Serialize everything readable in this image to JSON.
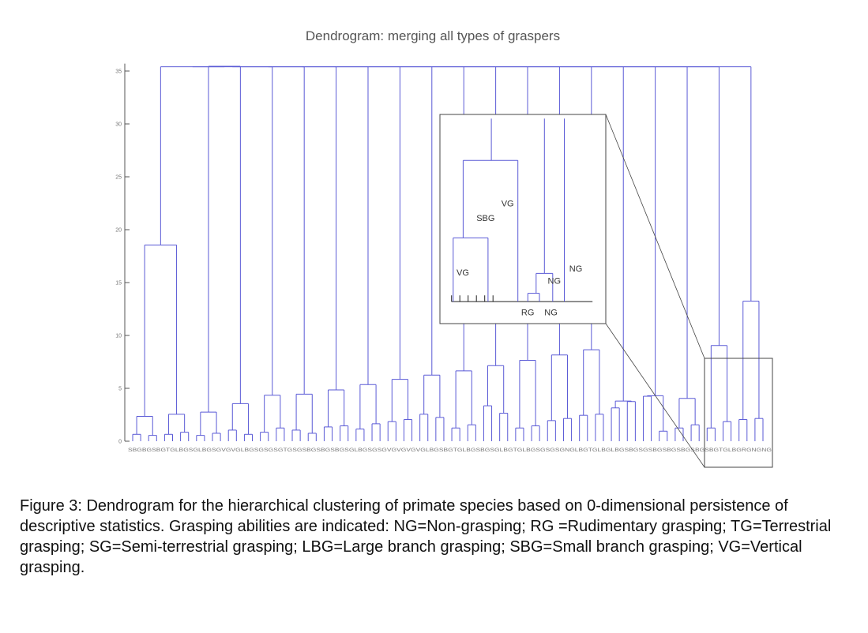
{
  "chart_data": {
    "type": "dendrogram",
    "title": "Dendrogram: merging all types of graspers",
    "yticks": [
      0,
      5,
      10,
      15,
      20,
      25,
      30,
      35
    ],
    "ylim": [
      0,
      36
    ],
    "leaf_count": 80,
    "leaf_label_strip": "SBGBGSBGTGLBGSGLBGSGVGVGLBGSGSGSGTGSGSBGSBGSBGSGLBGSGSGVGVGVGVGLBGSBGTGLBGSBGSGLBGTGLBGSGSGSGNGLBGTGLBGLBGSBGSGSBGSBGSBGSBGSBGTGLBGRGNGNG",
    "merge_heights": [
      0.6,
      0.5,
      0.6,
      0.8,
      0.5,
      0.7,
      1.0,
      0.6,
      0.8,
      1.2,
      1.0,
      0.7,
      1.3,
      1.4,
      1.1,
      1.6,
      1.8,
      2.0,
      2.5,
      2.2,
      1.2,
      1.5,
      3.3,
      2.6,
      1.2,
      1.4,
      1.9,
      2.1,
      2.4,
      2.5,
      3.1,
      3.7,
      4.2,
      0.9,
      1.2,
      1.5,
      1.2,
      1.8,
      2.0,
      2.1,
      2.3,
      2.5,
      2.7,
      3.5,
      4.3,
      4.4,
      4.8,
      5.3,
      5.8,
      6.2,
      6.6,
      7.1,
      7.6,
      8.1,
      8.6,
      2.4,
      3.2,
      4.0,
      9.0,
      13.2,
      18.5,
      35.4
    ],
    "inset": {
      "labels": [
        "VG",
        "SBG",
        "VG",
        "NG",
        "NG",
        "RG",
        "NG"
      ]
    }
  },
  "caption": "Figure 3: Dendrogram for the hierarchical clustering of primate species based on 0-dimensional persistence of descriptive statistics. Grasping abilities are indicated: NG=Non-grasping; RG =Rudimentary grasping; TG=Terrestrial grasping; SG=Semi-terrestrial grasping; LBG=Large branch grasping; SBG=Small branch grasping; VG=Vertical grasping.",
  "colors": {
    "tree": "#5a5ad6",
    "axis": "#555555",
    "inset_frame": "#444444"
  }
}
